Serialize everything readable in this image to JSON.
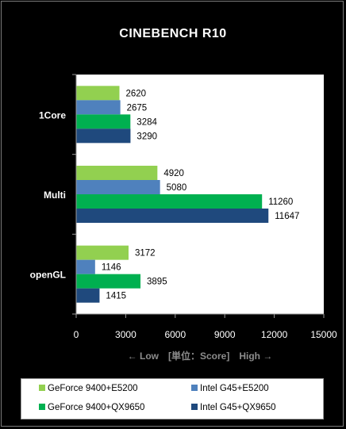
{
  "chart_data": {
    "type": "bar",
    "orientation": "horizontal",
    "title": "CINEBENCH R10",
    "axis_caption": "← Low　[単位：Score]　High →",
    "categories": [
      "1Core",
      "Multi",
      "openGL"
    ],
    "series": [
      {
        "name": "GeForce 9400+E5200",
        "color": "#92d050",
        "values": [
          2620,
          4920,
          3172
        ]
      },
      {
        "name": "Intel G45+E5200",
        "color": "#4f81bd",
        "values": [
          2675,
          5080,
          1146
        ]
      },
      {
        "name": "GeForce 9400+QX9650",
        "color": "#00b050",
        "values": [
          3284,
          11260,
          3895
        ]
      },
      {
        "name": "Intel G45+QX9650",
        "color": "#1f497d",
        "values": [
          3290,
          11647,
          1415
        ]
      }
    ],
    "xlim": [
      0,
      15000
    ],
    "xticks": [
      0,
      3000,
      6000,
      9000,
      12000,
      15000
    ],
    "grid": false,
    "legend_position": "bottom"
  }
}
